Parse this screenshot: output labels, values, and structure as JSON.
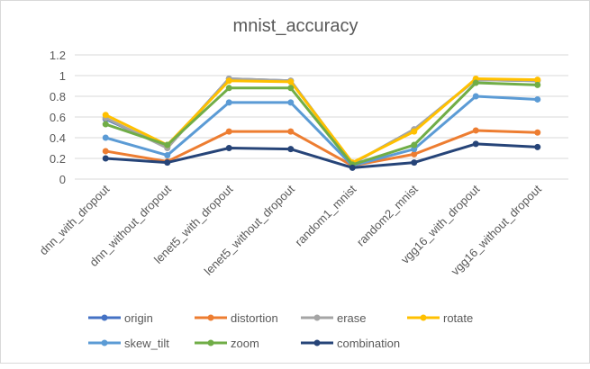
{
  "chart_data": {
    "type": "line",
    "title": "mnist_accuracy",
    "xlabel": "",
    "ylabel": "",
    "ylim": [
      0,
      1.2
    ],
    "yticks": [
      "0",
      "0.2",
      "0.4",
      "0.6",
      "0.8",
      "1",
      "1.2"
    ],
    "grid": true,
    "legend_position": "bottom",
    "categories": [
      "dnn_with_dropout",
      "dnn_without_dropout",
      "lenet5_with_dropout",
      "lenet5_without_dropout",
      "random1_mnist",
      "random2_mnist",
      "vgg16_with_dropout",
      "vgg16_without_dropout"
    ],
    "series": [
      {
        "name": "origin",
        "color": "#4472C4",
        "values": [
          0.58,
          0.31,
          0.97,
          0.95,
          0.15,
          0.48,
          0.96,
          0.95
        ]
      },
      {
        "name": "distortion",
        "color": "#ED7D31",
        "values": [
          0.27,
          0.17,
          0.46,
          0.46,
          0.13,
          0.24,
          0.47,
          0.45
        ]
      },
      {
        "name": "erase",
        "color": "#A5A5A5",
        "values": [
          0.59,
          0.3,
          0.97,
          0.95,
          0.15,
          0.48,
          0.96,
          0.95
        ]
      },
      {
        "name": "rotate",
        "color": "#FFC000",
        "values": [
          0.62,
          0.33,
          0.95,
          0.94,
          0.16,
          0.46,
          0.97,
          0.96
        ]
      },
      {
        "name": "skew_tilt",
        "color": "#5B9BD5",
        "values": [
          0.4,
          0.23,
          0.74,
          0.74,
          0.13,
          0.29,
          0.8,
          0.77
        ]
      },
      {
        "name": "zoom",
        "color": "#70AD47",
        "values": [
          0.53,
          0.33,
          0.88,
          0.88,
          0.14,
          0.33,
          0.93,
          0.91
        ]
      },
      {
        "name": "combination",
        "color": "#264478",
        "values": [
          0.2,
          0.16,
          0.3,
          0.29,
          0.11,
          0.16,
          0.34,
          0.31
        ]
      }
    ]
  }
}
